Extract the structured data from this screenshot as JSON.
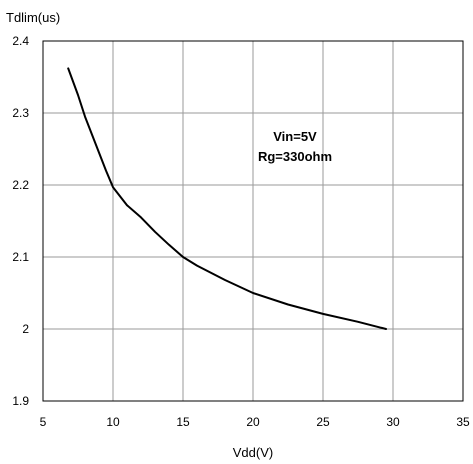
{
  "chart_data": {
    "type": "line",
    "title": "",
    "xlabel": "Vdd(V)",
    "ylabel": "Tdlim(us)",
    "xlim": [
      5,
      35
    ],
    "ylim": [
      1.9,
      2.4
    ],
    "xticks": [
      5,
      10,
      15,
      20,
      25,
      30,
      35
    ],
    "yticks": [
      1.9,
      2.0,
      2.1,
      2.2,
      2.3,
      2.4
    ],
    "xtick_labels": [
      "5",
      "10",
      "15",
      "20",
      "25",
      "30",
      "35"
    ],
    "ytick_labels": [
      "1.9",
      "2",
      "2.1",
      "2.2",
      "2.3",
      "2.4"
    ],
    "grid": true,
    "series": [
      {
        "color": "#000000",
        "x": [
          6.8,
          7.5,
          8.0,
          8.5,
          9.0,
          9.5,
          10.0,
          11.0,
          12.0,
          13.0,
          14.0,
          15.0,
          16.0,
          18.0,
          20.0,
          22.5,
          25.0,
          27.5,
          29.5
        ],
        "y": [
          2.362,
          2.325,
          2.295,
          2.27,
          2.245,
          2.22,
          2.197,
          2.172,
          2.155,
          2.135,
          2.117,
          2.1,
          2.088,
          2.068,
          2.05,
          2.034,
          2.021,
          2.01,
          2.0
        ]
      }
    ],
    "annotations": [
      {
        "text": "Vin=5V",
        "x": 23.0,
        "y": 2.261
      },
      {
        "text": "Rg=330ohm",
        "x": 23.0,
        "y": 2.233
      }
    ]
  }
}
